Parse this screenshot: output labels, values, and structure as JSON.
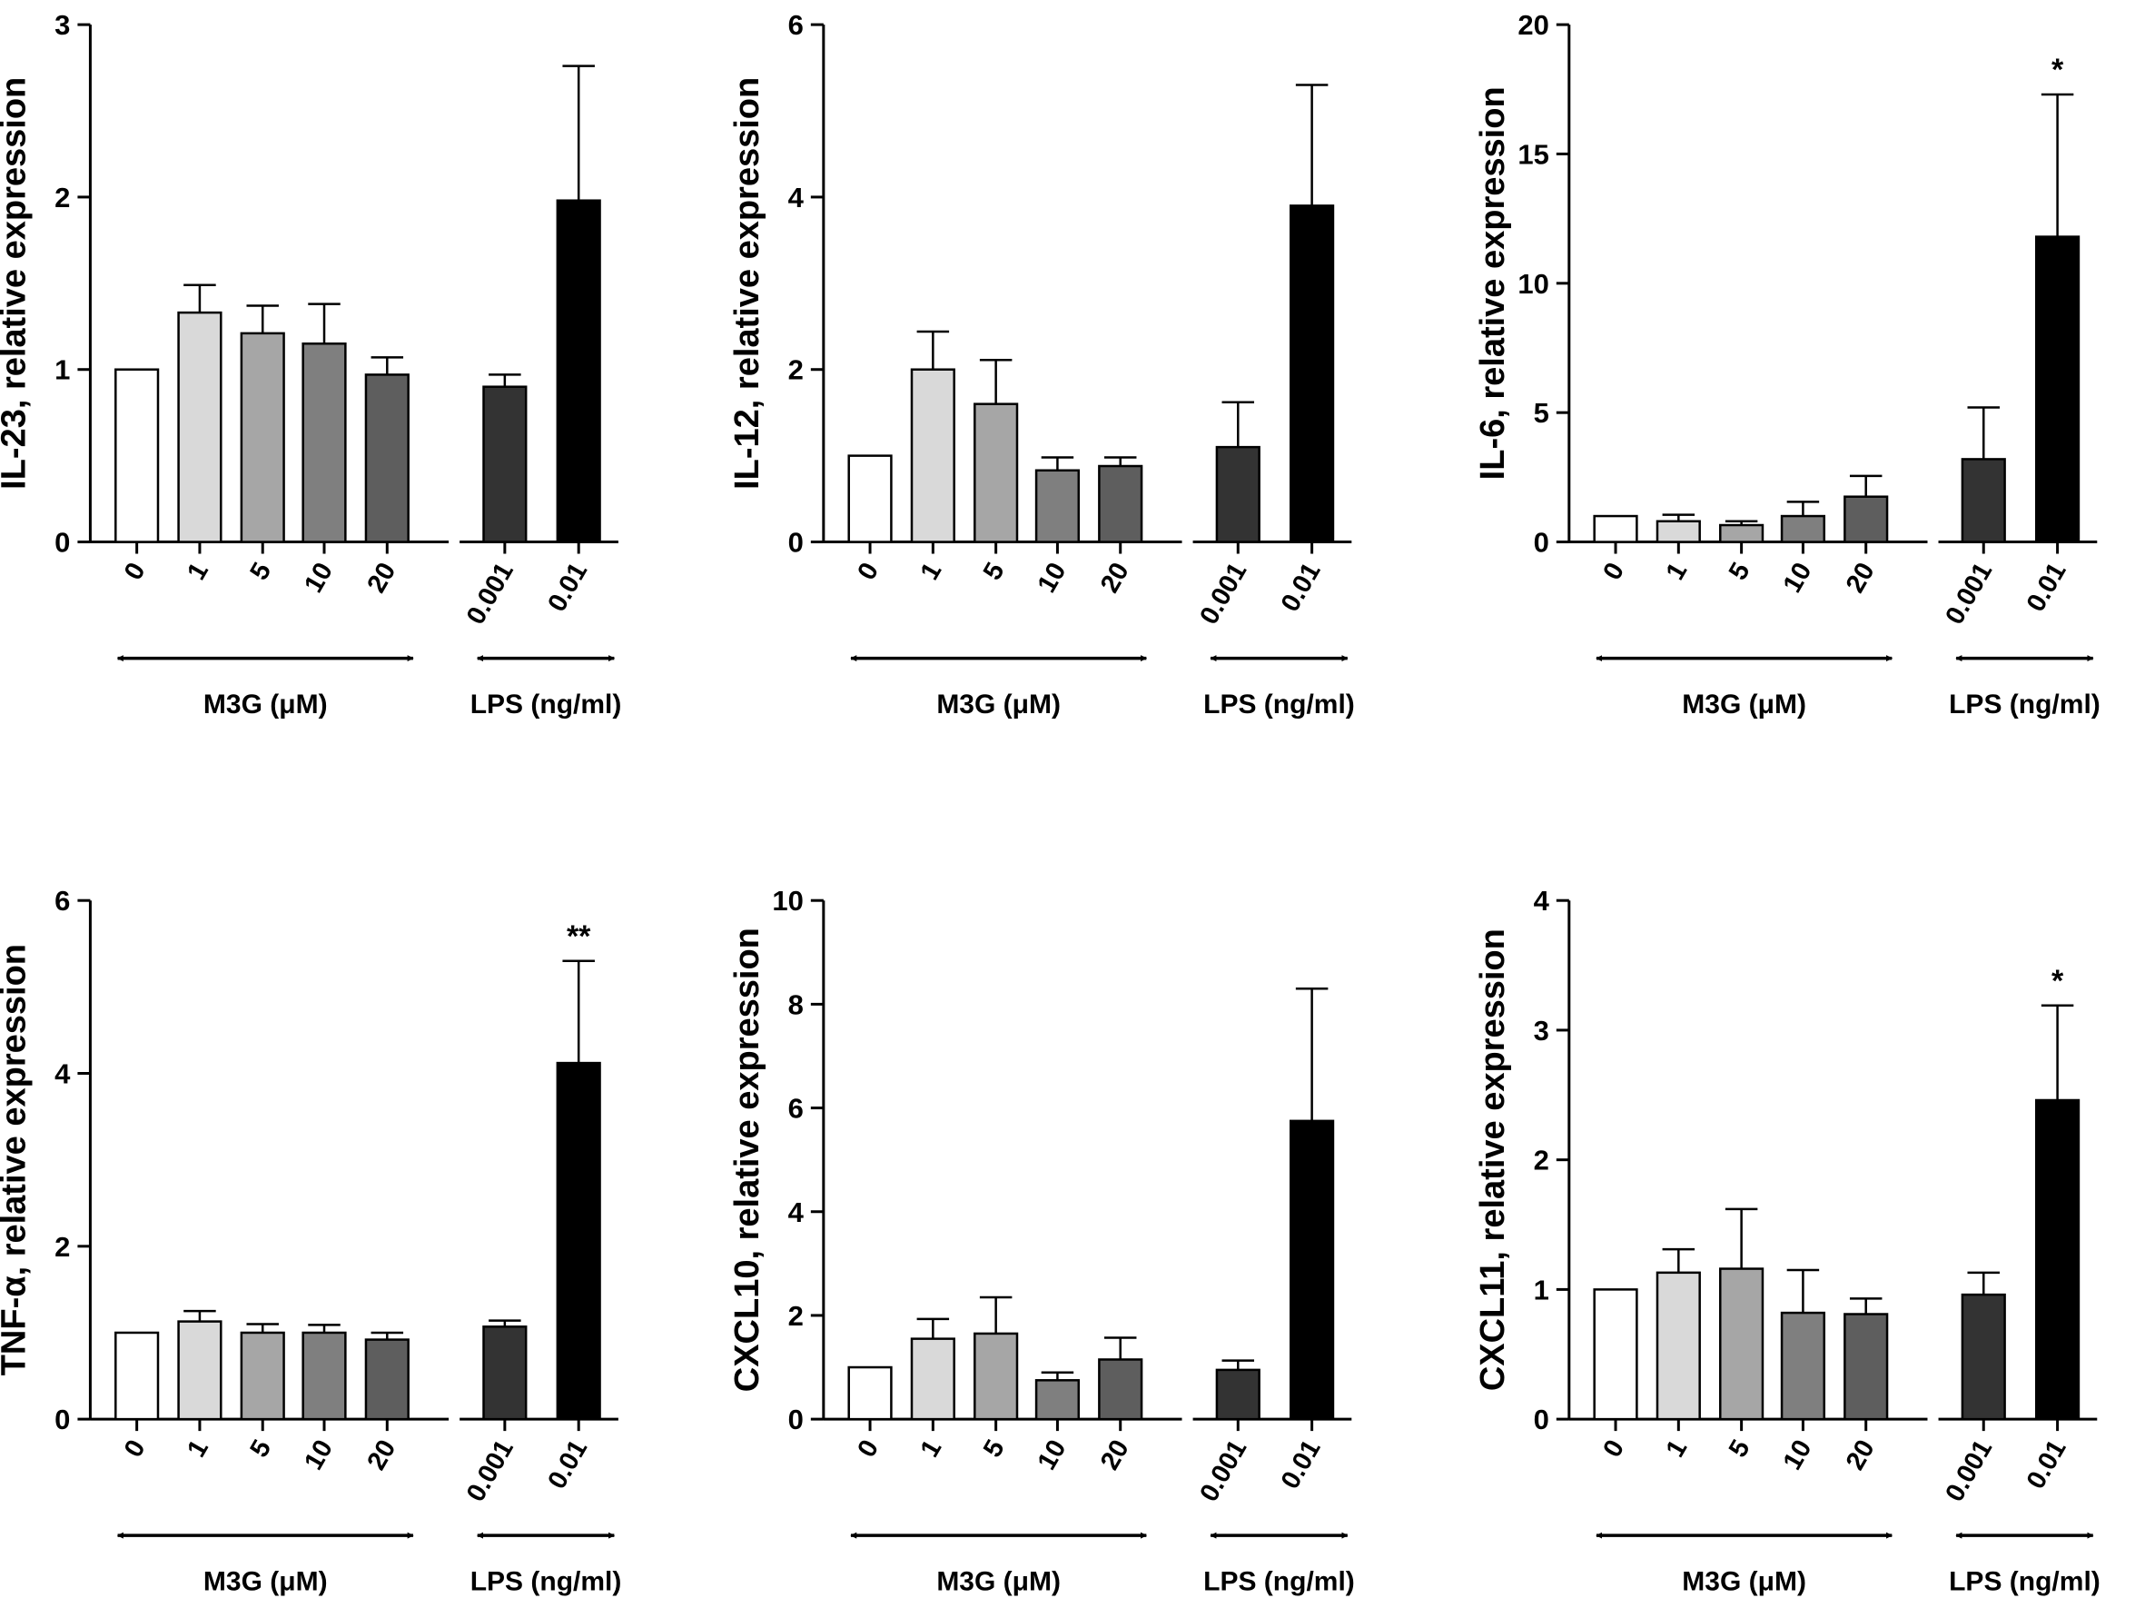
{
  "chart_data": [
    {
      "type": "bar",
      "ylabel": "IL-23, relative expression",
      "ylim": [
        0,
        3
      ],
      "yticks": [
        0,
        1,
        2,
        3
      ],
      "categories": [
        "0",
        "1",
        "5",
        "10",
        "20",
        "0.001",
        "0.01"
      ],
      "values": [
        1.0,
        1.33,
        1.21,
        1.15,
        0.97,
        0.9,
        1.98
      ],
      "errors": [
        0,
        0.16,
        0.16,
        0.23,
        0.1,
        0.07,
        0.78
      ],
      "significance": [
        "",
        "",
        "",
        "",
        "",
        "",
        ""
      ],
      "bar_colors": [
        "#ffffff",
        "#d9d9d9",
        "#a6a6a6",
        "#7f7f7f",
        "#5e5e5e",
        "#333333",
        "#000000"
      ],
      "groups": [
        {
          "label": "M3G (μM)",
          "indices": [
            0,
            4
          ]
        },
        {
          "label": "LPS (ng/ml)",
          "indices": [
            5,
            6
          ]
        }
      ]
    },
    {
      "type": "bar",
      "ylabel": "IL-12, relative expression",
      "ylim": [
        0,
        6
      ],
      "yticks": [
        0,
        2,
        4,
        6
      ],
      "categories": [
        "0",
        "1",
        "5",
        "10",
        "20",
        "0.001",
        "0.01"
      ],
      "values": [
        1.0,
        2.0,
        1.6,
        0.83,
        0.88,
        1.1,
        3.9
      ],
      "errors": [
        0,
        0.44,
        0.51,
        0.15,
        0.1,
        0.52,
        1.4
      ],
      "significance": [
        "",
        "",
        "",
        "",
        "",
        "",
        ""
      ],
      "bar_colors": [
        "#ffffff",
        "#d9d9d9",
        "#a6a6a6",
        "#7f7f7f",
        "#5e5e5e",
        "#333333",
        "#000000"
      ],
      "groups": [
        {
          "label": "M3G (μM)",
          "indices": [
            0,
            4
          ]
        },
        {
          "label": "LPS (ng/ml)",
          "indices": [
            5,
            6
          ]
        }
      ]
    },
    {
      "type": "bar",
      "ylabel": "IL-6, relative expression",
      "ylim": [
        0,
        20
      ],
      "yticks": [
        0,
        5,
        10,
        15,
        20
      ],
      "categories": [
        "0",
        "1",
        "5",
        "10",
        "20",
        "0.001",
        "0.01"
      ],
      "values": [
        1.0,
        0.8,
        0.65,
        1.0,
        1.75,
        3.2,
        11.8
      ],
      "errors": [
        0,
        0.25,
        0.15,
        0.55,
        0.8,
        2.0,
        5.5
      ],
      "significance": [
        "",
        "",
        "",
        "",
        "",
        "",
        "*"
      ],
      "bar_colors": [
        "#ffffff",
        "#d9d9d9",
        "#a6a6a6",
        "#7f7f7f",
        "#5e5e5e",
        "#333333",
        "#000000"
      ],
      "groups": [
        {
          "label": "M3G (μM)",
          "indices": [
            0,
            4
          ]
        },
        {
          "label": "LPS (ng/ml)",
          "indices": [
            5,
            6
          ]
        }
      ]
    },
    {
      "type": "bar",
      "ylabel": "TNF-α, relative expression",
      "ylim": [
        0,
        6
      ],
      "yticks": [
        0,
        2,
        4,
        6
      ],
      "categories": [
        "0",
        "1",
        "5",
        "10",
        "20",
        "0.001",
        "0.01"
      ],
      "values": [
        1.0,
        1.13,
        1.0,
        1.0,
        0.92,
        1.07,
        4.12
      ],
      "errors": [
        0,
        0.12,
        0.1,
        0.09,
        0.08,
        0.07,
        1.18
      ],
      "significance": [
        "",
        "",
        "",
        "",
        "",
        "",
        "**"
      ],
      "bar_colors": [
        "#ffffff",
        "#d9d9d9",
        "#a6a6a6",
        "#7f7f7f",
        "#5e5e5e",
        "#333333",
        "#000000"
      ],
      "groups": [
        {
          "label": "M3G (μM)",
          "indices": [
            0,
            4
          ]
        },
        {
          "label": "LPS (ng/ml)",
          "indices": [
            5,
            6
          ]
        }
      ]
    },
    {
      "type": "bar",
      "ylabel": "CXCL10, relative expression",
      "ylim": [
        0,
        10
      ],
      "yticks": [
        0,
        2,
        4,
        6,
        8,
        10
      ],
      "categories": [
        "0",
        "1",
        "5",
        "10",
        "20",
        "0.001",
        "0.01"
      ],
      "values": [
        1.0,
        1.55,
        1.65,
        0.75,
        1.15,
        0.95,
        5.75
      ],
      "errors": [
        0,
        0.38,
        0.7,
        0.15,
        0.42,
        0.18,
        2.55
      ],
      "significance": [
        "",
        "",
        "",
        "",
        "",
        "",
        ""
      ],
      "bar_colors": [
        "#ffffff",
        "#d9d9d9",
        "#a6a6a6",
        "#7f7f7f",
        "#5e5e5e",
        "#333333",
        "#000000"
      ],
      "groups": [
        {
          "label": "M3G (μM)",
          "indices": [
            0,
            4
          ]
        },
        {
          "label": "LPS (ng/ml)",
          "indices": [
            5,
            6
          ]
        }
      ]
    },
    {
      "type": "bar",
      "ylabel": "CXCL11, relative expression",
      "ylim": [
        0,
        4
      ],
      "yticks": [
        0,
        1,
        2,
        3,
        4
      ],
      "categories": [
        "0",
        "1",
        "5",
        "10",
        "20",
        "0.001",
        "0.01"
      ],
      "values": [
        1.0,
        1.13,
        1.16,
        0.82,
        0.81,
        0.96,
        2.46
      ],
      "errors": [
        0,
        0.18,
        0.46,
        0.33,
        0.12,
        0.17,
        0.73
      ],
      "significance": [
        "",
        "",
        "",
        "",
        "",
        "",
        "*"
      ],
      "bar_colors": [
        "#ffffff",
        "#d9d9d9",
        "#a6a6a6",
        "#7f7f7f",
        "#5e5e5e",
        "#333333",
        "#000000"
      ],
      "groups": [
        {
          "label": "M3G (μM)",
          "indices": [
            0,
            4
          ]
        },
        {
          "label": "LPS (ng/ml)",
          "indices": [
            5,
            6
          ]
        }
      ]
    }
  ]
}
